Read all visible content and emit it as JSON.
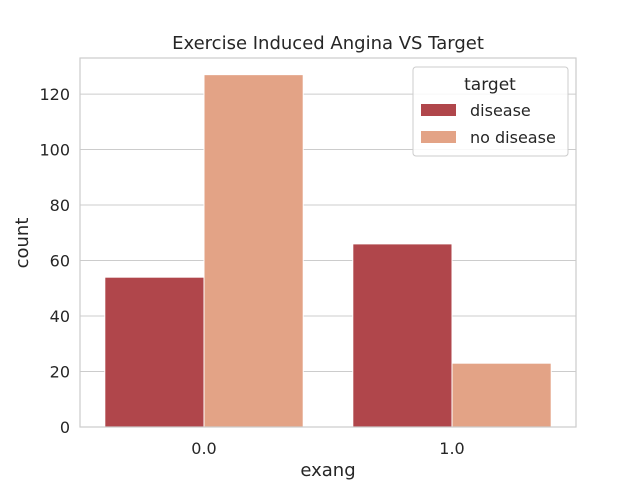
{
  "chart_data": {
    "type": "bar",
    "title": "Exercise Induced Angina VS Target",
    "xlabel": "exang",
    "ylabel": "count",
    "categories": [
      "0.0",
      "1.0"
    ],
    "series": [
      {
        "name": "disease",
        "color": "#b0464b",
        "values": [
          54,
          66
        ]
      },
      {
        "name": "no disease",
        "color": "#e3a386",
        "values": [
          127,
          23
        ]
      }
    ],
    "ylim": [
      0,
      133
    ],
    "yticks": [
      0,
      20,
      40,
      60,
      80,
      100,
      120
    ],
    "grid": true,
    "legend": {
      "title": "target",
      "position": "top-right"
    }
  }
}
